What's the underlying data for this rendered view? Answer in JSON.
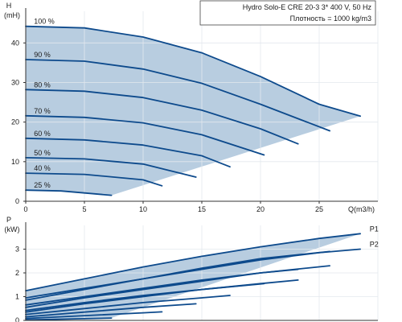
{
  "info": {
    "line1": "Hydro Solo-E CRE 20-3    3* 400 V, 50 Hz",
    "line2": "Плотность = 1000 kg/m3"
  },
  "colors": {
    "curve": "#0d4a8c",
    "fill": "#b8cde0",
    "grid": "#e3e8ee",
    "axis": "#333333"
  },
  "chart_data": [
    {
      "type": "line",
      "title": "",
      "ylabel_top": "H",
      "ylabel_unit": "(mH)",
      "xlabel": "Q(m3/h)",
      "xlim": [
        0,
        30
      ],
      "ylim": [
        0,
        48
      ],
      "xticks": [
        0,
        5,
        10,
        15,
        20,
        25
      ],
      "yticks": [
        0,
        10,
        20,
        30,
        40
      ],
      "grid": true,
      "band_fill": true,
      "series": [
        {
          "name": "100 %",
          "x": [
            0,
            5,
            10,
            15,
            20,
            25,
            28.5
          ],
          "y": [
            44.2,
            43.8,
            41.5,
            37.5,
            31.5,
            24.5,
            21.5
          ]
        },
        {
          "name": "90 %",
          "x": [
            0,
            5,
            10,
            15,
            20,
            25.9
          ],
          "y": [
            35.8,
            35.4,
            33.4,
            29.8,
            24.5,
            17.8
          ]
        },
        {
          "name": "80 %",
          "x": [
            0,
            5,
            10,
            15,
            20,
            23.2
          ],
          "y": [
            28.2,
            27.8,
            26.2,
            23.0,
            18.3,
            14.5
          ]
        },
        {
          "name": "70 %",
          "x": [
            0,
            5,
            10,
            15,
            20.3
          ],
          "y": [
            21.6,
            21.2,
            19.8,
            16.8,
            11.7
          ]
        },
        {
          "name": "60 %",
          "x": [
            0,
            5,
            10,
            15,
            17.4
          ],
          "y": [
            15.9,
            15.5,
            14.2,
            11.5,
            8.7
          ]
        },
        {
          "name": "50 %",
          "x": [
            0,
            5,
            10,
            14.5
          ],
          "y": [
            11.0,
            10.7,
            9.4,
            6.1
          ]
        },
        {
          "name": "40 %",
          "x": [
            0,
            5,
            10,
            11.6
          ],
          "y": [
            7.1,
            6.8,
            5.4,
            3.9
          ]
        },
        {
          "name": "25 %",
          "x": [
            0,
            3,
            5,
            7.3
          ],
          "y": [
            2.8,
            2.6,
            2.1,
            1.5
          ]
        }
      ],
      "labels": [
        {
          "text": "100 %",
          "x": 0.7,
          "y": 44.2
        },
        {
          "text": "90 %",
          "x": 0.7,
          "y": 35.8
        },
        {
          "text": "80 %",
          "x": 0.7,
          "y": 28.2
        },
        {
          "text": "70 %",
          "x": 0.7,
          "y": 21.6
        },
        {
          "text": "60 %",
          "x": 0.7,
          "y": 15.9
        },
        {
          "text": "50 %",
          "x": 0.7,
          "y": 11.0
        },
        {
          "text": "40 %",
          "x": 0.7,
          "y": 7.1
        },
        {
          "text": "25 %",
          "x": 0.7,
          "y": 2.8
        }
      ]
    },
    {
      "type": "line",
      "title": "",
      "ylabel_top": "P",
      "ylabel_unit": "(kW)",
      "xlabel": "",
      "xlim": [
        0,
        30
      ],
      "ylim": [
        0,
        4
      ],
      "xticks": [],
      "yticks": [
        0,
        1,
        2,
        3
      ],
      "grid": true,
      "band_fill": true,
      "series": [
        {
          "name": "P1",
          "x": [
            0,
            5,
            10,
            15,
            20,
            25,
            28.5
          ],
          "y": [
            1.25,
            1.75,
            2.25,
            2.7,
            3.1,
            3.45,
            3.65
          ]
        },
        {
          "name": "P2",
          "x": [
            0,
            5,
            10,
            15,
            20,
            25,
            28.5
          ],
          "y": [
            0.95,
            1.35,
            1.75,
            2.15,
            2.55,
            2.85,
            3.0
          ]
        },
        {
          "name": "",
          "x": [
            0,
            5,
            10,
            15,
            20,
            25.9
          ],
          "y": [
            0.85,
            1.3,
            1.75,
            2.2,
            2.6,
            2.9
          ]
        },
        {
          "name": "",
          "x": [
            0,
            5,
            10,
            15,
            20,
            25.9
          ],
          "y": [
            0.65,
            1.0,
            1.35,
            1.7,
            2.0,
            2.3
          ]
        },
        {
          "name": "",
          "x": [
            0,
            5,
            10,
            15,
            20,
            23.2
          ],
          "y": [
            0.55,
            0.95,
            1.3,
            1.65,
            2.0,
            2.15
          ]
        },
        {
          "name": "",
          "x": [
            0,
            5,
            10,
            15,
            20,
            23.2
          ],
          "y": [
            0.42,
            0.75,
            1.05,
            1.3,
            1.55,
            1.7
          ]
        },
        {
          "name": "",
          "x": [
            0,
            5,
            10,
            15,
            20.3
          ],
          "y": [
            0.35,
            0.7,
            1.0,
            1.3,
            1.55
          ]
        },
        {
          "name": "",
          "x": [
            0,
            5,
            10,
            15,
            17.4
          ],
          "y": [
            0.25,
            0.5,
            0.75,
            0.95,
            1.05
          ]
        },
        {
          "name": "",
          "x": [
            0,
            5,
            10,
            14.5
          ],
          "y": [
            0.15,
            0.35,
            0.55,
            0.7
          ]
        },
        {
          "name": "",
          "x": [
            0,
            5,
            10,
            11.6
          ],
          "y": [
            0.08,
            0.2,
            0.32,
            0.36
          ]
        },
        {
          "name": "",
          "x": [
            0,
            3,
            5,
            7.3
          ],
          "y": [
            0.02,
            0.05,
            0.07,
            0.1
          ]
        }
      ],
      "labels": [
        {
          "text": "P1",
          "x": 29.3,
          "y": 3.65
        },
        {
          "text": "P2",
          "x": 29.3,
          "y": 3.0
        }
      ]
    }
  ]
}
